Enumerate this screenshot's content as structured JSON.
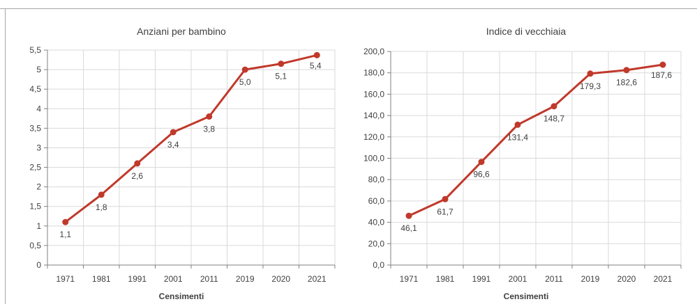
{
  "chart_data": [
    {
      "type": "line",
      "title": "Anziani per bambino",
      "xlabel": "Censimenti",
      "ylabel": "",
      "categories": [
        "1971",
        "1981",
        "1991",
        "2001",
        "2011",
        "2019",
        "2020",
        "2021"
      ],
      "values": [
        1.1,
        1.8,
        2.6,
        3.4,
        3.8,
        5.0,
        5.15,
        5.37
      ],
      "data_labels": [
        "1,1",
        "1,8",
        "2,6",
        "3,4",
        "3,8",
        "5,0",
        "5,1",
        "5,4"
      ],
      "ylim": [
        0,
        5.5
      ],
      "yticks": [
        "0",
        "0,5",
        "1",
        "1,5",
        "2",
        "2,5",
        "3",
        "3,5",
        "4",
        "4,5",
        "5",
        "5,5"
      ],
      "grid": true,
      "color": "#c0392b"
    },
    {
      "type": "line",
      "title": "Indice di vecchiaia",
      "xlabel": "Censimenti",
      "ylabel": "",
      "categories": [
        "1971",
        "1981",
        "1991",
        "2001",
        "2011",
        "2019",
        "2020",
        "2021"
      ],
      "values": [
        46.1,
        61.7,
        96.6,
        131.4,
        148.7,
        179.3,
        182.6,
        187.6
      ],
      "data_labels": [
        "46,1",
        "61,7",
        "96,6",
        "131,4",
        "148,7",
        "179,3",
        "182,6",
        "187,6"
      ],
      "ylim": [
        0,
        200
      ],
      "yticks": [
        "0,0",
        "20,0",
        "40,0",
        "60,0",
        "80,0",
        "100,0",
        "120,0",
        "140,0",
        "160,0",
        "180,0",
        "200,0"
      ],
      "grid": true,
      "color": "#c0392b"
    }
  ]
}
